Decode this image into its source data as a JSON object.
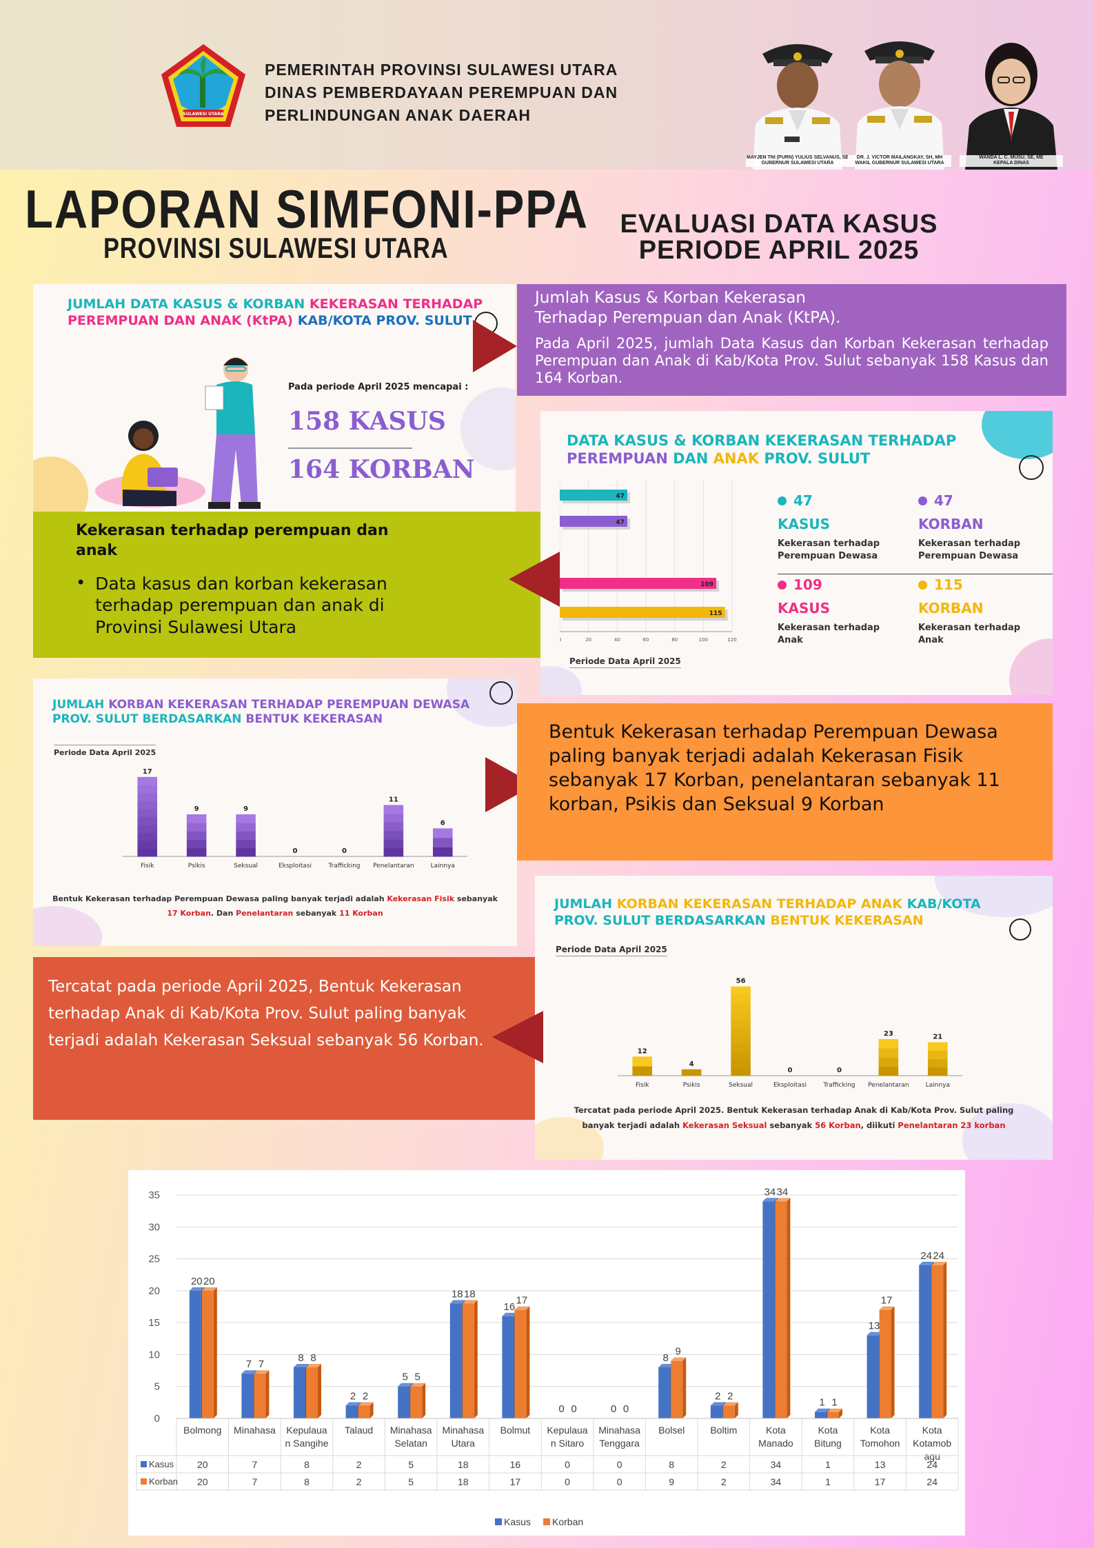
{
  "header": {
    "org_line1": "PEMERINTAH PROVINSI SULAWESI UTARA",
    "org_line2": "DINAS PEMBERDAYAAN PEREMPUAN DAN",
    "org_line3": "PERLINDUNGAN ANAK DAERAH",
    "logo_text": "SULAWESI UTARA",
    "officials": [
      {
        "cap1": "MAYJEN TNI (PURN) YULIUS SELVANUS, SE",
        "cap2": "GUBERNUR SULAWESI UTARA"
      },
      {
        "cap1": "DR. J. VICTOR MAILANGKAY, SH, MH",
        "cap2": "WAKIL GUBERNUR SULAWESI UTARA"
      },
      {
        "cap1": "WANDA L. C. MUSU, SE, ME",
        "cap2": "KEPALA DINAS"
      }
    ]
  },
  "title": {
    "main": "LAPORAN SIMFONI-PPA",
    "sub": "PROVINSI SULAWESI UTARA",
    "eval1": "EVALUASI DATA KASUS",
    "eval2": "PERIODE APRIL 2025"
  },
  "panel1": {
    "title_a": "JUMLAH DATA KASUS & KORBAN ",
    "title_b": "KEKERASAN TERHADAP",
    "title_c": "PEREMPUAN DAN ANAK (KtPA)",
    "title_d": " KAB/KOTA PROV. SULUT",
    "period_text": "Pada periode April 2025 mencapai :",
    "kasus": "158 KASUS",
    "korban": "164 KORBAN"
  },
  "box_purple": {
    "title1": "Jumlah Kasus & Korban Kekerasan",
    "title2": "Terhadap Perempuan dan Anak (KtPA).",
    "body": "Pada April 2025, jumlah Data Kasus dan Korban Kekerasan terhadap Perempuan dan Anak di Kab/Kota Prov. Sulut sebanyak 158 Kasus dan 164 Korban."
  },
  "box_green": {
    "heading": "Kekerasan  terhadap perempuan dan anak",
    "bullet": "Data kasus dan korban kekerasan terhadap perempuan dan anak di Provinsi Sulawesi Utara"
  },
  "panel2": {
    "title_a": "DATA KASUS & KORBAN KEKERASAN TERHADAP",
    "title_b": "PEREMPUAN",
    "title_c": " DAN ",
    "title_d": "ANAK",
    "title_e": " PROV. SULUT",
    "period": "Periode Data April 2025",
    "stats": [
      {
        "num": "47",
        "kind": "KASUS",
        "desc1": "Kekerasan terhadap",
        "desc2": "Perempuan Dewasa",
        "color": "#1ab5bd"
      },
      {
        "num": "47",
        "kind": "KORBAN",
        "desc1": "Kekerasan terhadap",
        "desc2": "Perempuan Dewasa",
        "color": "#8b5dd0"
      },
      {
        "num": "109",
        "kind": "KASUS",
        "desc1": "Kekerasan terhadap",
        "desc2": "Anak",
        "color": "#ef2f88"
      },
      {
        "num": "115",
        "kind": "KORBAN",
        "desc1": "Kekerasan terhadap",
        "desc2": "Anak",
        "color": "#f2b70c"
      }
    ]
  },
  "panel3": {
    "title_a": "JUMLAH ",
    "title_b": "KORBAN KEKERASAN TERHADAP PEREMPUAN DEWASA",
    "title_c": "PROV. SULUT BERDASARKAN ",
    "title_d": "BENTUK KEKERASAN",
    "period": "Periode Data April 2025",
    "caption1a": "Bentuk Kekerasan terhadap Perempuan Dewasa paling banyak terjadi adalah ",
    "caption1b": "Kekerasan Fisik",
    "caption1c": " sebanyak",
    "caption2a": "17 Korban",
    "caption2b": ". Dan ",
    "caption2c": "Penelantaran",
    "caption2d": " sebanyak ",
    "caption2e": "11 Korban"
  },
  "box_orange": {
    "text": "Bentuk Kekerasan terhadap Perempuan Dewasa paling banyak terjadi adalah Kekerasan Fisik sebanyak 17 Korban, penelantaran sebanyak 11 korban, Psikis dan Seksual 9 Korban"
  },
  "panel4": {
    "title_a": "JUMLAH ",
    "title_b": "KORBAN KEKERASAN TERHADAP ANAK",
    "title_c": " KAB/KOTA",
    "title_d": "PROV. SULUT BERDASARKAN ",
    "title_e": "BENTUK KEKERASAN",
    "period": "Periode Data April 2025",
    "caption1": "Tercatat pada periode April 2025. Bentuk Kekerasan terhadap Anak di Kab/Kota Prov. Sulut paling",
    "caption2a": "banyak terjadi adalah ",
    "caption2b": "Kekerasan Seksual",
    "caption2c": " sebanyak ",
    "caption2d": "56 Korban",
    "caption2e": ", diikuti ",
    "caption2f": "Penelantaran 23 korban"
  },
  "box_red": {
    "text": "Tercatat pada periode April 2025, Bentuk Kekerasan terhadap Anak di Kab/Kota Prov. Sulut paling banyak terjadi adalah Kekerasan Seksual sebanyak 56 Korban."
  },
  "colors": {
    "purple_box": "#a064c0",
    "green_box": "#b8c40e",
    "orange_box": "#fd953a",
    "red_box": "#df5a3a",
    "arrow": "#a52226",
    "kasus": "#4472c4",
    "korban": "#ed7d31"
  },
  "chart_data": [
    {
      "type": "bar",
      "orientation": "horizontal",
      "categories": [
        "Kasus Perempuan Dewasa",
        "Korban Perempuan Dewasa",
        "Kasus Anak",
        "Korban Anak"
      ],
      "values": [
        47,
        47,
        109,
        115
      ],
      "bar_colors": [
        "#1ab5bd",
        "#8b5dd0",
        "#ef2f88",
        "#f2b70c"
      ],
      "xticks": [
        "0",
        "20",
        "40",
        "60",
        "80",
        "100",
        "120"
      ],
      "xlim": [
        0,
        120
      ]
    },
    {
      "type": "bar",
      "categories": [
        "Fisik",
        "Psikis",
        "Seksual",
        "Eksploitasi",
        "Trafficking",
        "Penelantaran",
        "Lainnya"
      ],
      "values": [
        17,
        9,
        9,
        0,
        0,
        11,
        6
      ],
      "ylim": [
        0,
        18
      ],
      "bar_color": "#8b5dd0"
    },
    {
      "type": "bar",
      "categories": [
        "Fisik",
        "Psikis",
        "Seksual",
        "Eksploitasi",
        "Trafficking",
        "Penelantaran",
        "Lainnya"
      ],
      "values": [
        12,
        4,
        56,
        0,
        0,
        23,
        21
      ],
      "ylim": [
        0,
        58
      ],
      "bar_color": "#f2b70c"
    },
    {
      "type": "bar",
      "categories": [
        "Bolmong",
        "Minahasa",
        "Kepulauan Sangihe",
        "Talaud",
        "Minahasa Selatan",
        "Minahasa Utara",
        "Bolmut",
        "Kepulauan Sitaro",
        "Minahasa Tenggara",
        "Bolsel",
        "Boltim",
        "Kota Manado",
        "Kota Bitung",
        "Kota Tomohon",
        "Kota Kotamobagu"
      ],
      "category_lines": [
        [
          "Bolmong"
        ],
        [
          "Minahasa"
        ],
        [
          "Kepulaua",
          "n Sangihe"
        ],
        [
          "Talaud"
        ],
        [
          "Minahasa",
          "Selatan"
        ],
        [
          "Minahasa",
          "Utara"
        ],
        [
          "Bolmut"
        ],
        [
          "Kepulaua",
          "n Sitaro"
        ],
        [
          "Minahasa",
          "Tenggara"
        ],
        [
          "Bolsel"
        ],
        [
          "Boltim"
        ],
        [
          "Kota",
          "Manado"
        ],
        [
          "Kota",
          "Bitung"
        ],
        [
          "Kota",
          "Tomohon"
        ],
        [
          "Kota",
          "Kotamob",
          "agu"
        ]
      ],
      "series": [
        {
          "name": "Kasus",
          "values": [
            20,
            7,
            8,
            2,
            5,
            18,
            16,
            0,
            0,
            8,
            2,
            34,
            1,
            13,
            24
          ],
          "color": "#4472c4"
        },
        {
          "name": "Korban",
          "values": [
            20,
            7,
            8,
            2,
            5,
            18,
            17,
            0,
            0,
            9,
            2,
            34,
            1,
            17,
            24
          ],
          "color": "#ed7d31"
        }
      ],
      "ylim": [
        0,
        35
      ],
      "yticks": [
        "0",
        "5",
        "10",
        "15",
        "20",
        "25",
        "30",
        "35"
      ],
      "legend": "bottom",
      "grid": true
    }
  ]
}
